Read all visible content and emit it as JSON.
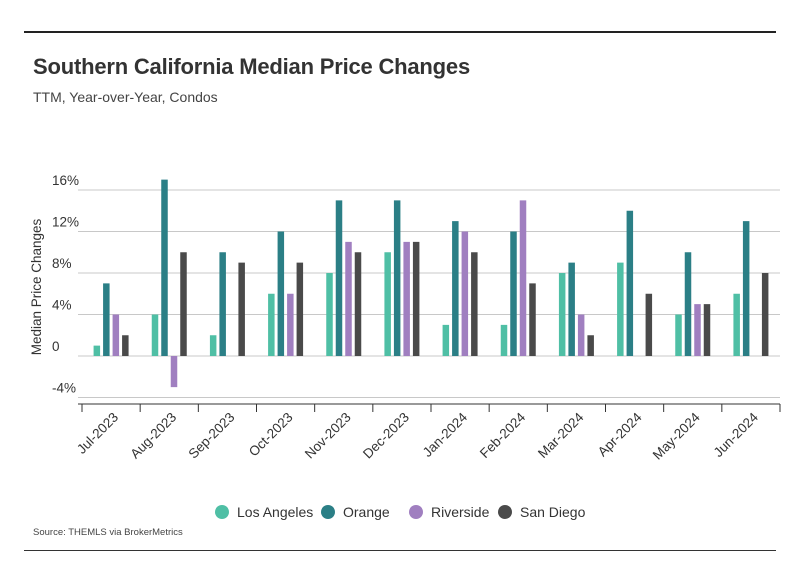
{
  "title": "Southern California Median Price Changes",
  "subtitle": "TTM, Year-over-Year, Condos",
  "source": "Source:  THEMLS via BrokerMetrics",
  "chart_data": {
    "type": "bar",
    "ylabel": "Median Price Changes",
    "xlabel": "",
    "ylim": [
      -5,
      18
    ],
    "yticks": [
      16,
      12,
      8,
      4,
      0,
      -4
    ],
    "ytick_labels": [
      "16%",
      "12%",
      "8%",
      "4%",
      "0",
      "-4%"
    ],
    "grid": "horizontal",
    "legend_position": "bottom",
    "categories": [
      "Jul-2023",
      "Aug-2023",
      "Sep-2023",
      "Oct-2023",
      "Nov-2023",
      "Dec-2023",
      "Jan-2024",
      "Feb-2024",
      "Mar-2024",
      "Apr-2024",
      "May-2024",
      "Jun-2024"
    ],
    "series": [
      {
        "name": "Los Angeles",
        "color": "#4fbfa5",
        "values": [
          1,
          4,
          2,
          6,
          8,
          10,
          3,
          3,
          8,
          9,
          4,
          6
        ]
      },
      {
        "name": "Orange",
        "color": "#2b7f86",
        "values": [
          7,
          17,
          10,
          12,
          15,
          15,
          13,
          12,
          9,
          14,
          10,
          13
        ]
      },
      {
        "name": "Riverside",
        "color": "#a07fc0",
        "values": [
          4,
          -3,
          null,
          6,
          11,
          11,
          12,
          15,
          4,
          null,
          5,
          null
        ]
      },
      {
        "name": "San Diego",
        "color": "#4a4a4a",
        "values": [
          2,
          10,
          9,
          9,
          10,
          11,
          10,
          7,
          2,
          6,
          5,
          8
        ]
      }
    ]
  }
}
